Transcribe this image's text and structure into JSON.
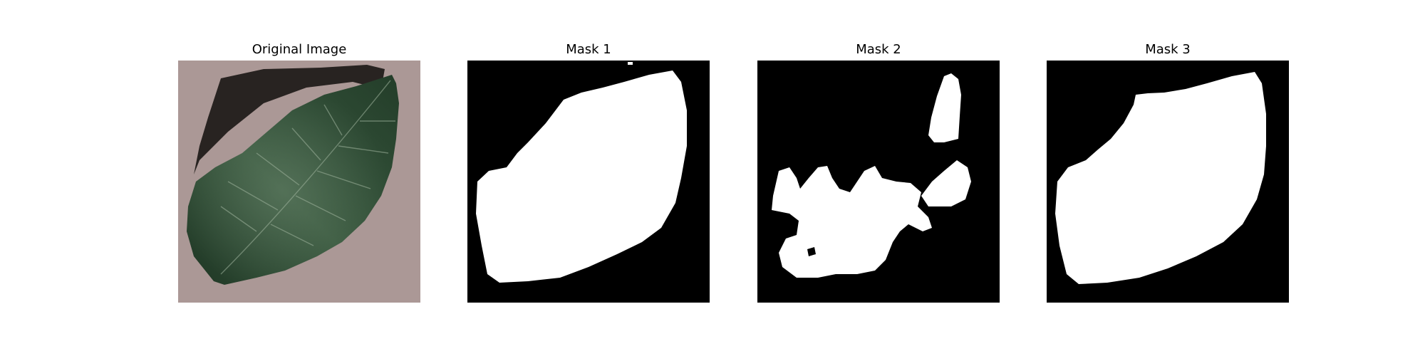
{
  "figure": {
    "panels": [
      {
        "title": "Original Image"
      },
      {
        "title": "Mask 1"
      },
      {
        "title": "Mask 2"
      },
      {
        "title": "Mask 3"
      }
    ]
  },
  "colors": {
    "background": "#ffffff",
    "mask_background": "#000000",
    "mask_foreground": "#ffffff",
    "leaf_dark": "#1f3a24",
    "leaf_light": "#3d5e42",
    "surface": "#ab9896"
  }
}
